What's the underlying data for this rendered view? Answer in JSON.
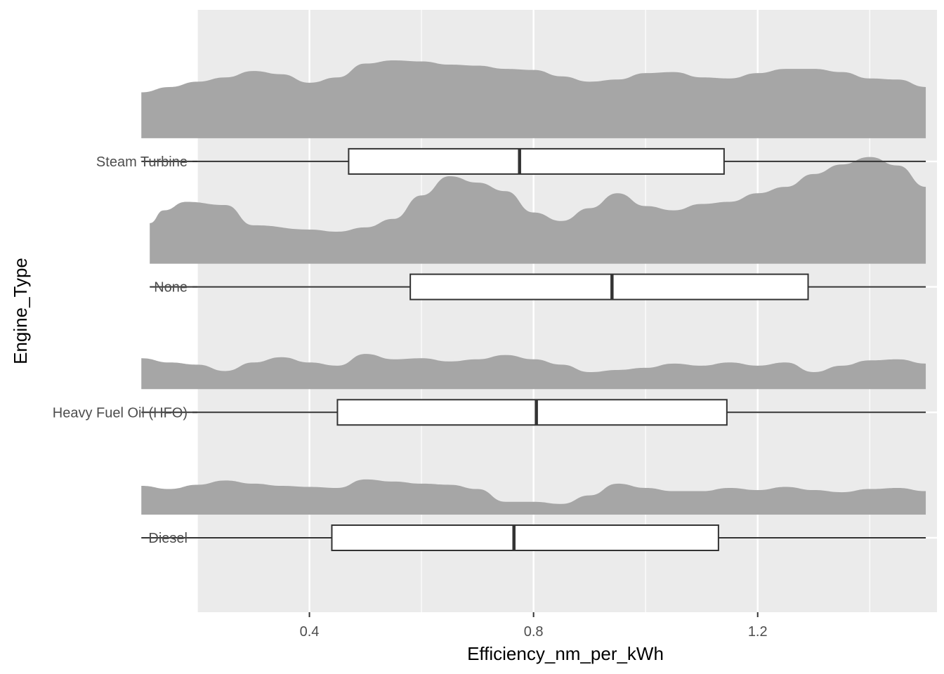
{
  "chart_data": {
    "type": "raincloud",
    "title": "",
    "xlabel": "Efficiency_nm_per_kWh",
    "ylabel": "Engine_Type",
    "xlim": [
      0.2,
      1.52
    ],
    "x_ticks": [
      0.4,
      0.8,
      1.2
    ],
    "x_tick_labels": [
      "0.4",
      "0.8",
      "1.2"
    ],
    "grid": true,
    "legend": "none",
    "colors": {
      "panel": "#EBEBEB",
      "grid": "#FFFFFF",
      "density": "#A6A6A6",
      "box_fill": "#FFFFFF",
      "box_line": "#333333"
    },
    "categories": [
      "Diesel",
      "Heavy Fuel Oil (HFO)",
      "None",
      "Steam Turbine"
    ],
    "series": [
      {
        "category": "Diesel",
        "box": {
          "min": 0.1,
          "q1": 0.44,
          "median": 0.765,
          "q3": 1.13,
          "max": 1.5
        },
        "density": [
          [
            0.1,
            0.27
          ],
          [
            0.15,
            0.24
          ],
          [
            0.2,
            0.28
          ],
          [
            0.25,
            0.32
          ],
          [
            0.3,
            0.29
          ],
          [
            0.35,
            0.27
          ],
          [
            0.4,
            0.26
          ],
          [
            0.45,
            0.25
          ],
          [
            0.5,
            0.33
          ],
          [
            0.55,
            0.31
          ],
          [
            0.6,
            0.29
          ],
          [
            0.65,
            0.28
          ],
          [
            0.7,
            0.24
          ],
          [
            0.75,
            0.12
          ],
          [
            0.8,
            0.12
          ],
          [
            0.85,
            0.1
          ],
          [
            0.9,
            0.18
          ],
          [
            0.95,
            0.29
          ],
          [
            1.0,
            0.25
          ],
          [
            1.05,
            0.22
          ],
          [
            1.1,
            0.22
          ],
          [
            1.15,
            0.25
          ],
          [
            1.2,
            0.23
          ],
          [
            1.25,
            0.26
          ],
          [
            1.3,
            0.23
          ],
          [
            1.35,
            0.21
          ],
          [
            1.4,
            0.24
          ],
          [
            1.45,
            0.25
          ],
          [
            1.5,
            0.22
          ]
        ]
      },
      {
        "category": "Heavy Fuel Oil (HFO)",
        "box": {
          "min": 0.1,
          "q1": 0.45,
          "median": 0.805,
          "q3": 1.145,
          "max": 1.5
        },
        "density": [
          [
            0.1,
            0.29
          ],
          [
            0.15,
            0.25
          ],
          [
            0.2,
            0.23
          ],
          [
            0.25,
            0.17
          ],
          [
            0.3,
            0.25
          ],
          [
            0.35,
            0.3
          ],
          [
            0.4,
            0.25
          ],
          [
            0.45,
            0.22
          ],
          [
            0.5,
            0.33
          ],
          [
            0.55,
            0.28
          ],
          [
            0.6,
            0.29
          ],
          [
            0.65,
            0.26
          ],
          [
            0.7,
            0.28
          ],
          [
            0.75,
            0.32
          ],
          [
            0.8,
            0.28
          ],
          [
            0.85,
            0.23
          ],
          [
            0.9,
            0.16
          ],
          [
            0.95,
            0.18
          ],
          [
            1.0,
            0.2
          ],
          [
            1.05,
            0.24
          ],
          [
            1.1,
            0.22
          ],
          [
            1.15,
            0.25
          ],
          [
            1.2,
            0.22
          ],
          [
            1.25,
            0.25
          ],
          [
            1.3,
            0.16
          ],
          [
            1.35,
            0.22
          ],
          [
            1.4,
            0.27
          ],
          [
            1.45,
            0.28
          ],
          [
            1.5,
            0.24
          ]
        ]
      },
      {
        "category": "None",
        "box": {
          "min": 0.115,
          "q1": 0.58,
          "median": 0.94,
          "q3": 1.29,
          "max": 1.5
        },
        "density": [
          [
            0.115,
            0.38
          ],
          [
            0.14,
            0.5
          ],
          [
            0.18,
            0.58
          ],
          [
            0.25,
            0.55
          ],
          [
            0.3,
            0.36
          ],
          [
            0.4,
            0.32
          ],
          [
            0.45,
            0.3
          ],
          [
            0.5,
            0.34
          ],
          [
            0.55,
            0.42
          ],
          [
            0.6,
            0.64
          ],
          [
            0.65,
            0.82
          ],
          [
            0.7,
            0.76
          ],
          [
            0.75,
            0.68
          ],
          [
            0.8,
            0.48
          ],
          [
            0.85,
            0.4
          ],
          [
            0.9,
            0.52
          ],
          [
            0.95,
            0.66
          ],
          [
            1.0,
            0.54
          ],
          [
            1.05,
            0.5
          ],
          [
            1.1,
            0.56
          ],
          [
            1.15,
            0.58
          ],
          [
            1.2,
            0.66
          ],
          [
            1.25,
            0.72
          ],
          [
            1.3,
            0.84
          ],
          [
            1.35,
            0.93
          ],
          [
            1.4,
            1.0
          ],
          [
            1.45,
            0.92
          ],
          [
            1.5,
            0.72
          ]
        ]
      },
      {
        "category": "Steam Turbine",
        "box": {
          "min": 0.1,
          "q1": 0.47,
          "median": 0.775,
          "q3": 1.14,
          "max": 1.5
        },
        "density": [
          [
            0.1,
            0.43
          ],
          [
            0.15,
            0.48
          ],
          [
            0.2,
            0.53
          ],
          [
            0.25,
            0.57
          ],
          [
            0.3,
            0.63
          ],
          [
            0.35,
            0.6
          ],
          [
            0.4,
            0.52
          ],
          [
            0.45,
            0.57
          ],
          [
            0.5,
            0.7
          ],
          [
            0.55,
            0.73
          ],
          [
            0.6,
            0.72
          ],
          [
            0.65,
            0.69
          ],
          [
            0.7,
            0.68
          ],
          [
            0.75,
            0.65
          ],
          [
            0.8,
            0.64
          ],
          [
            0.85,
            0.58
          ],
          [
            0.9,
            0.53
          ],
          [
            0.95,
            0.55
          ],
          [
            1.0,
            0.61
          ],
          [
            1.05,
            0.62
          ],
          [
            1.1,
            0.57
          ],
          [
            1.15,
            0.56
          ],
          [
            1.2,
            0.61
          ],
          [
            1.25,
            0.65
          ],
          [
            1.3,
            0.65
          ],
          [
            1.35,
            0.62
          ],
          [
            1.4,
            0.56
          ],
          [
            1.45,
            0.55
          ],
          [
            1.5,
            0.48
          ]
        ]
      }
    ]
  }
}
